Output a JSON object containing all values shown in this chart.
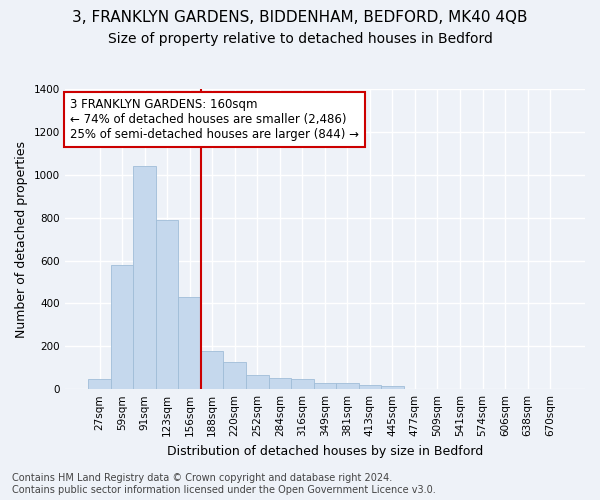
{
  "title": "3, FRANKLYN GARDENS, BIDDENHAM, BEDFORD, MK40 4QB",
  "subtitle": "Size of property relative to detached houses in Bedford",
  "xlabel": "Distribution of detached houses by size in Bedford",
  "ylabel": "Number of detached properties",
  "categories": [
    "27sqm",
    "59sqm",
    "91sqm",
    "123sqm",
    "156sqm",
    "188sqm",
    "220sqm",
    "252sqm",
    "284sqm",
    "316sqm",
    "349sqm",
    "381sqm",
    "413sqm",
    "445sqm",
    "477sqm",
    "509sqm",
    "541sqm",
    "574sqm",
    "606sqm",
    "638sqm",
    "670sqm"
  ],
  "values": [
    47,
    578,
    1040,
    790,
    430,
    178,
    128,
    65,
    50,
    47,
    30,
    28,
    20,
    13,
    0,
    0,
    0,
    0,
    0,
    0,
    0
  ],
  "bar_color": "#c5d8ed",
  "bar_edge_color": "#a0bdd8",
  "annotation_text": "3 FRANKLYN GARDENS: 160sqm\n← 74% of detached houses are smaller (2,486)\n25% of semi-detached houses are larger (844) →",
  "annotation_box_color": "#ffffff",
  "annotation_box_edge": "#cc0000",
  "vline_color": "#cc0000",
  "vline_x_index": 4,
  "ylim": [
    0,
    1400
  ],
  "yticks": [
    0,
    200,
    400,
    600,
    800,
    1000,
    1200,
    1400
  ],
  "footnote": "Contains HM Land Registry data © Crown copyright and database right 2024.\nContains public sector information licensed under the Open Government Licence v3.0.",
  "bg_color": "#eef2f8",
  "grid_color": "#ffffff",
  "title_fontsize": 11,
  "subtitle_fontsize": 10,
  "label_fontsize": 9,
  "tick_fontsize": 7.5,
  "footnote_fontsize": 7,
  "annot_fontsize": 8.5
}
